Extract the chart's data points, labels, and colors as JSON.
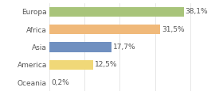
{
  "categories": [
    "Europa",
    "Africa",
    "Asia",
    "America",
    "Oceania"
  ],
  "values": [
    38.1,
    31.5,
    17.7,
    12.5,
    0.2
  ],
  "labels": [
    "38,1%",
    "31,5%",
    "17,7%",
    "12,5%",
    "0,2%"
  ],
  "bar_colors": [
    "#a8c47a",
    "#f0b97a",
    "#7090c0",
    "#f0d878",
    "#f0c0b0"
  ],
  "background_color": "#ffffff",
  "xlim": [
    0,
    48
  ],
  "bar_height": 0.55,
  "label_fontsize": 6.5,
  "tick_fontsize": 6.5,
  "grid_color": "#dddddd",
  "grid_ticks": [
    0,
    10,
    20,
    30,
    40
  ]
}
